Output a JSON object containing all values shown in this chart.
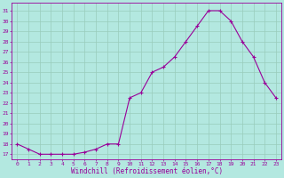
{
  "x": [
    0,
    1,
    2,
    3,
    4,
    5,
    6,
    7,
    8,
    9,
    10,
    11,
    12,
    13,
    14,
    15,
    16,
    17,
    18,
    19,
    20,
    21,
    22,
    23
  ],
  "y": [
    18.0,
    17.5,
    17.0,
    17.0,
    17.0,
    17.0,
    17.2,
    17.5,
    18.0,
    18.0,
    22.5,
    23.0,
    25.0,
    25.5,
    26.5,
    28.0,
    29.5,
    31.0,
    31.0,
    30.0,
    28.0,
    26.5,
    24.0,
    22.5
  ],
  "line_color": "#990099",
  "marker": "+",
  "marker_size": 3,
  "bg_color": "#b3e8e0",
  "grid_color": "#99ccbb",
  "xlabel": "Windchill (Refroidissement éolien,°C)",
  "ylabel_ticks": [
    17,
    18,
    19,
    20,
    21,
    22,
    23,
    24,
    25,
    26,
    27,
    28,
    29,
    30,
    31
  ],
  "xlim": [
    -0.5,
    23.5
  ],
  "ylim": [
    16.5,
    31.8
  ],
  "xlabel_color": "#990099",
  "tick_color": "#990099",
  "spine_color": "#990099",
  "xlabel_fontsize": 5.5,
  "tick_fontsize": 4.5
}
